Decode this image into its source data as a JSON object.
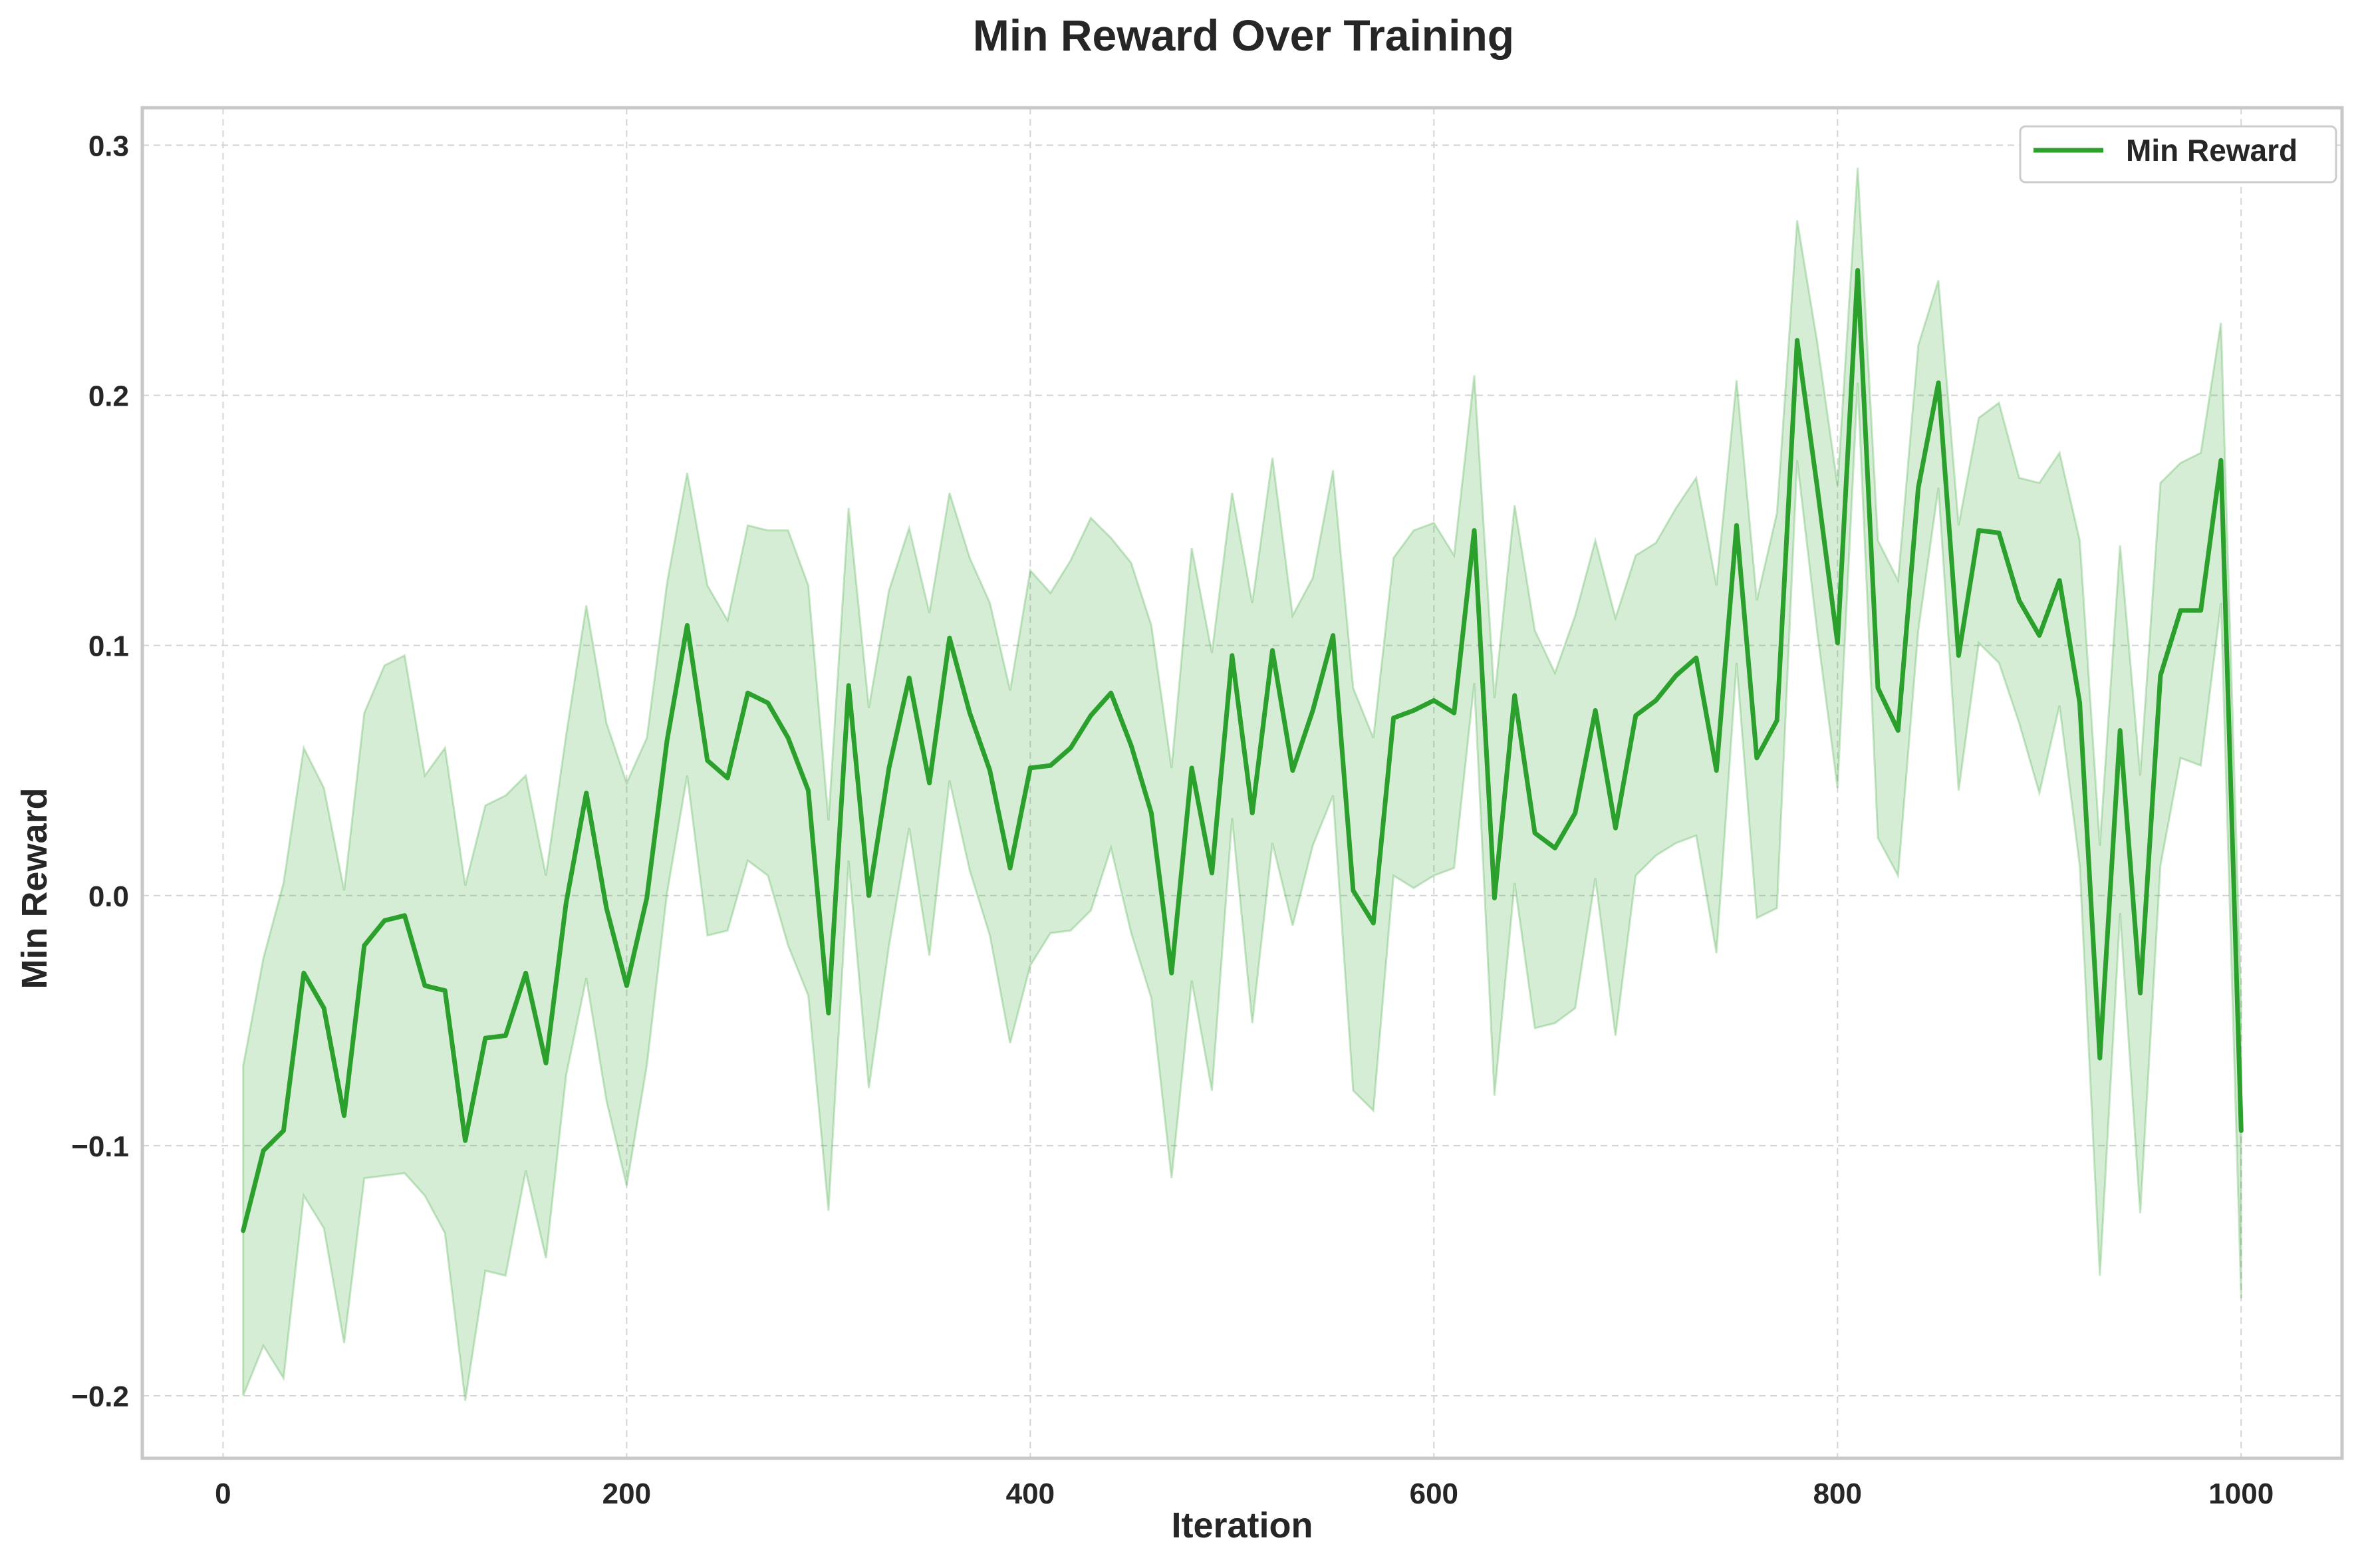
{
  "chart_data": {
    "type": "line",
    "title": "Min Reward Over Training",
    "xlabel": "Iteration",
    "ylabel": "Min Reward",
    "xlim": [
      -40,
      1050
    ],
    "ylim": [
      -0.225,
      0.315
    ],
    "xticks": [
      0,
      200,
      400,
      600,
      800,
      1000
    ],
    "xtick_labels": [
      "0",
      "200",
      "400",
      "600",
      "800",
      "1000"
    ],
    "yticks": [
      -0.2,
      -0.1,
      0.0,
      0.1,
      0.2,
      0.3
    ],
    "ytick_labels": [
      "−0.2",
      "−0.1",
      "0.0",
      "0.1",
      "0.2",
      "0.3"
    ],
    "grid": true,
    "legend_position": "top-right",
    "series": [
      {
        "name": "Min Reward",
        "color": "#2ca02c",
        "band_color": "#2ca02c",
        "x": [
          10,
          20,
          30,
          40,
          50,
          60,
          70,
          80,
          90,
          100,
          110,
          120,
          130,
          140,
          150,
          160,
          170,
          180,
          190,
          200,
          210,
          220,
          230,
          240,
          250,
          260,
          270,
          280,
          290,
          300,
          310,
          320,
          330,
          340,
          350,
          360,
          370,
          380,
          390,
          400,
          410,
          420,
          430,
          440,
          450,
          460,
          470,
          480,
          490,
          500,
          510,
          520,
          530,
          540,
          550,
          560,
          570,
          580,
          590,
          600,
          610,
          620,
          630,
          640,
          650,
          660,
          670,
          680,
          690,
          700,
          710,
          720,
          730,
          740,
          750,
          760,
          770,
          780,
          790,
          800,
          810,
          820,
          830,
          840,
          850,
          860,
          870,
          880,
          890,
          900,
          910,
          920,
          930,
          940,
          950,
          960,
          970,
          980,
          990,
          1000
        ],
        "values": [
          -0.134,
          -0.102,
          -0.094,
          -0.031,
          -0.045,
          -0.088,
          -0.02,
          -0.01,
          -0.008,
          -0.036,
          -0.038,
          -0.098,
          -0.057,
          -0.056,
          -0.031,
          -0.067,
          -0.003,
          0.041,
          -0.005,
          -0.036,
          -0.001,
          0.062,
          0.108,
          0.054,
          0.047,
          0.081,
          0.077,
          0.063,
          0.042,
          -0.047,
          0.084,
          0.0,
          0.051,
          0.087,
          0.045,
          0.103,
          0.073,
          0.05,
          0.011,
          0.051,
          0.052,
          0.059,
          0.072,
          0.081,
          0.06,
          0.033,
          -0.031,
          0.051,
          0.009,
          0.096,
          0.033,
          0.098,
          0.05,
          0.074,
          0.104,
          0.002,
          -0.011,
          0.071,
          0.074,
          0.078,
          0.073,
          0.146,
          -0.001,
          0.08,
          0.025,
          0.019,
          0.033,
          0.074,
          0.027,
          0.072,
          0.078,
          0.088,
          0.095,
          0.05,
          0.148,
          0.055,
          0.07,
          0.222,
          0.163,
          0.101,
          0.25,
          0.083,
          0.066,
          0.163,
          0.205,
          0.096,
          0.146,
          0.145,
          0.118,
          0.104,
          0.126,
          0.077,
          -0.065,
          0.066,
          -0.039,
          0.088,
          0.114,
          0.114,
          0.174,
          -0.094
        ],
        "upper": [
          -0.068,
          -0.025,
          0.005,
          0.059,
          0.043,
          0.002,
          0.073,
          0.092,
          0.096,
          0.048,
          0.059,
          0.004,
          0.036,
          0.04,
          0.048,
          0.008,
          0.064,
          0.116,
          0.069,
          0.045,
          0.063,
          0.125,
          0.169,
          0.124,
          0.11,
          0.148,
          0.146,
          0.146,
          0.124,
          0.03,
          0.155,
          0.075,
          0.122,
          0.147,
          0.113,
          0.161,
          0.135,
          0.117,
          0.082,
          0.13,
          0.121,
          0.134,
          0.151,
          0.143,
          0.133,
          0.108,
          0.051,
          0.139,
          0.097,
          0.161,
          0.117,
          0.175,
          0.112,
          0.127,
          0.17,
          0.083,
          0.063,
          0.135,
          0.146,
          0.149,
          0.136,
          0.208,
          0.079,
          0.156,
          0.106,
          0.089,
          0.112,
          0.142,
          0.111,
          0.136,
          0.141,
          0.155,
          0.167,
          0.124,
          0.206,
          0.118,
          0.153,
          0.27,
          0.221,
          0.164,
          0.291,
          0.142,
          0.126,
          0.22,
          0.246,
          0.148,
          0.191,
          0.197,
          0.167,
          0.165,
          0.177,
          0.142,
          0.02,
          0.14,
          0.048,
          0.165,
          0.173,
          0.177,
          0.229,
          -0.044
        ],
        "lower": [
          -0.2,
          -0.18,
          -0.193,
          -0.12,
          -0.133,
          -0.179,
          -0.113,
          -0.112,
          -0.111,
          -0.12,
          -0.135,
          -0.202,
          -0.15,
          -0.152,
          -0.11,
          -0.145,
          -0.072,
          -0.033,
          -0.082,
          -0.116,
          -0.068,
          0.001,
          0.048,
          -0.016,
          -0.014,
          0.014,
          0.008,
          -0.02,
          -0.04,
          -0.126,
          0.014,
          -0.077,
          -0.02,
          0.027,
          -0.024,
          0.046,
          0.01,
          -0.016,
          -0.059,
          -0.028,
          -0.015,
          -0.014,
          -0.006,
          0.019,
          -0.015,
          -0.041,
          -0.113,
          -0.034,
          -0.078,
          0.031,
          -0.051,
          0.021,
          -0.012,
          0.02,
          0.04,
          -0.078,
          -0.086,
          0.008,
          0.003,
          0.008,
          0.011,
          0.085,
          -0.08,
          0.005,
          -0.053,
          -0.051,
          -0.045,
          0.007,
          -0.056,
          0.008,
          0.016,
          0.021,
          0.024,
          -0.023,
          0.093,
          -0.009,
          -0.005,
          0.174,
          0.105,
          0.043,
          0.205,
          0.023,
          0.008,
          0.106,
          0.163,
          0.042,
          0.101,
          0.093,
          0.069,
          0.041,
          0.076,
          0.012,
          -0.152,
          -0.007,
          -0.127,
          0.012,
          0.055,
          0.052,
          0.117,
          -0.161
        ]
      }
    ]
  }
}
